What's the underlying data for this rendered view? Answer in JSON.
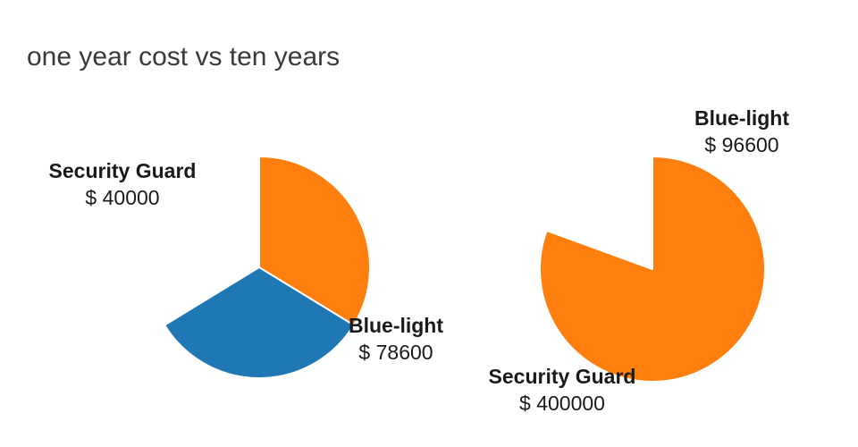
{
  "chart_data": {
    "type": "pie",
    "title": "one year cost vs ten years",
    "legend_position": "none",
    "background": "#ffffff",
    "pies": [
      {
        "position": "left",
        "start_angle_deg": 0,
        "direction": "clockwise",
        "slices": [
          {
            "label": "Blue-light",
            "value": 78600,
            "value_text": "$ 78600",
            "color": "#1f77b4"
          },
          {
            "label": "Security Guard",
            "value": 40000,
            "value_text": "$ 40000",
            "color": "#ff7f0e"
          }
        ]
      },
      {
        "position": "right",
        "start_angle_deg": 0,
        "direction": "clockwise",
        "slices": [
          {
            "label": "Blue-light",
            "value": 96600,
            "value_text": "$ 96600",
            "color": "#1f77b4"
          },
          {
            "label": "Security Guard",
            "value": 400000,
            "value_text": "$ 400000",
            "color": "#ff7f0e"
          }
        ]
      }
    ]
  }
}
